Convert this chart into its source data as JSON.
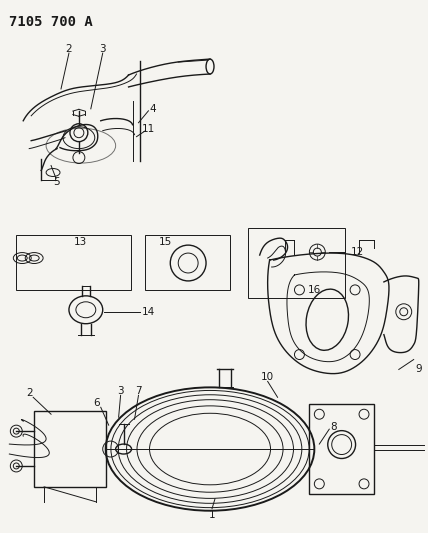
{
  "title": "7105 700 A",
  "bg_color": "#f5f4f0",
  "line_color": "#1a1a1a",
  "fig_width": 4.28,
  "fig_height": 5.33,
  "dpi": 100
}
